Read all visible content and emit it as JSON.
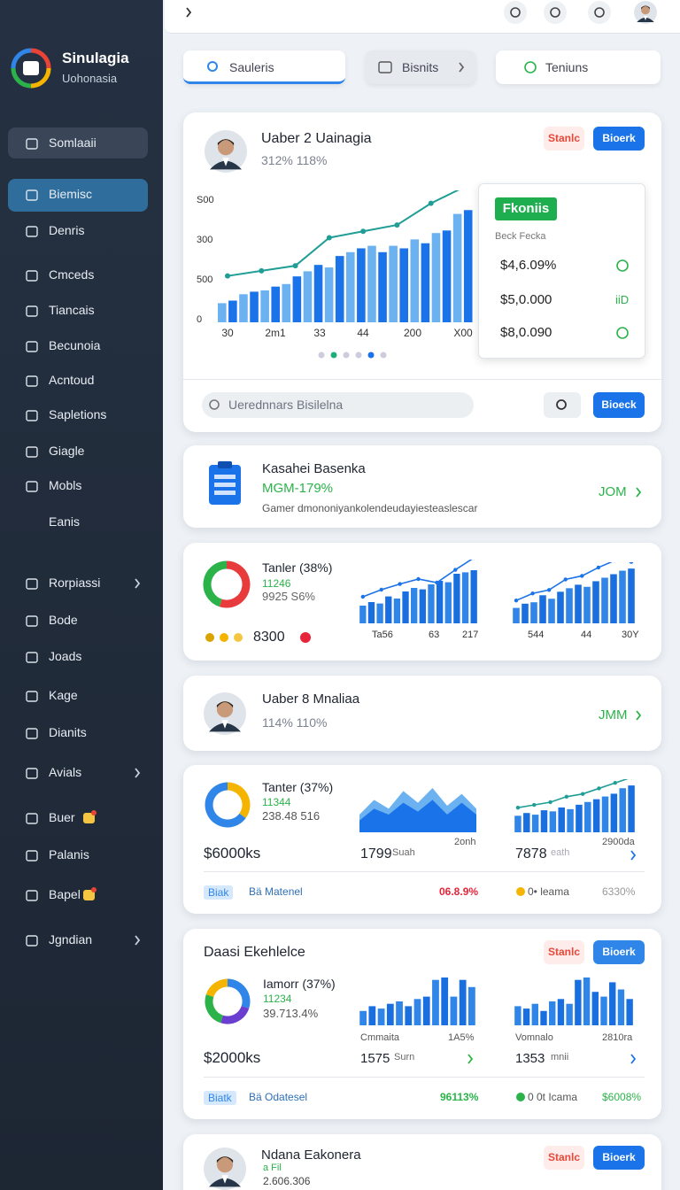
{
  "sidebar": {
    "brand": {
      "title": "Sinulagia",
      "subtitle": "Uohonasia"
    },
    "items": [
      "Somlaaii",
      "Biemisc",
      "Denris",
      "Cmceds",
      "Tiancais",
      "Becunoia",
      "Acntoud",
      "Sapletions",
      "Giagle",
      "Mobls",
      "Eanis",
      "Rorpiassi",
      "Bode",
      "Joads",
      "Kage",
      "Dianits",
      "Avials",
      "Buer",
      "Palanis",
      "Bapel",
      "Jgndian"
    ]
  },
  "tabs": [
    "Sauleris",
    "Bisnits",
    "Teniuns"
  ],
  "card1": {
    "name": "Uaber 2 Uainagia",
    "stats": "312% 118%",
    "button_a": "Stanlc",
    "button_b": "Bioerk",
    "chart": {
      "type": "bar",
      "ylim": [
        0,
        100
      ],
      "y_axis_labels": [
        "S00",
        "300",
        "500",
        "0"
      ],
      "x_labels": [
        "30",
        "2m1",
        "33",
        "44",
        "200",
        "X00"
      ],
      "bar_colors": [
        "#6cb2f0",
        "#1a73e8"
      ],
      "line_color": "#1f9e96",
      "values": [
        15,
        17,
        22,
        24,
        25,
        28,
        30,
        36,
        40,
        45,
        43,
        52,
        55,
        58,
        60,
        55,
        60,
        58,
        65,
        62,
        70,
        72,
        85,
        88
      ],
      "line": [
        28,
        32,
        36,
        58,
        63,
        68,
        85,
        98
      ]
    },
    "popover": {
      "badge": "Fkoniis",
      "caption": "Beck Fecka",
      "rows": [
        "$4,6.09%",
        "$5,0.000",
        "$8,0.090"
      ],
      "row_tag": "iiD"
    },
    "search_placeholder": "Uerednnars Bisilelna",
    "search_button": "Bioeck"
  },
  "card2": {
    "name": "Kasahei Basenka",
    "stat": "MGM-179%",
    "description": "Gamer dmononiyankolendeudayiesteaslescar",
    "link": "JOM"
  },
  "card3": {
    "title": "Tanler (38%)",
    "sub1": "11246",
    "sub2": "9925 S6%",
    "total": "8300",
    "donut": {
      "values": [
        55,
        45
      ],
      "colors": [
        "#e83b3b",
        "#2bb34a"
      ]
    },
    "chart_a": {
      "values": [
        25,
        30,
        28,
        38,
        35,
        45,
        50,
        48,
        55,
        60,
        58,
        70,
        72,
        75
      ],
      "line": [
        30,
        40,
        48,
        55,
        50,
        68,
        85
      ],
      "labels": [
        "Ta56",
        "63",
        "217"
      ]
    },
    "chart_b": {
      "values": [
        22,
        28,
        30,
        40,
        35,
        45,
        50,
        55,
        52,
        60,
        65,
        70,
        75,
        78
      ],
      "line": [
        25,
        35,
        40,
        55,
        60,
        72,
        82,
        80
      ],
      "labels": [
        "544",
        "44",
        "30Y"
      ]
    }
  },
  "card4": {
    "name": "Uaber 8 Mnaliaa",
    "stats": "114% 110%",
    "link": "JMM"
  },
  "card5": {
    "title": "Tanter (37%)",
    "sub1": "11344",
    "sub2": "238.48 516",
    "donut": {
      "values": [
        35,
        65
      ],
      "colors": [
        "#f4b400",
        "#2f86e8"
      ]
    },
    "area": {
      "back": [
        30,
        55,
        40,
        70,
        50,
        75,
        45,
        65,
        40
      ],
      "front": [
        20,
        40,
        30,
        50,
        35,
        55,
        30,
        50,
        30
      ]
    },
    "bars": {
      "values": [
        30,
        35,
        32,
        40,
        38,
        45,
        42,
        50,
        55,
        60,
        65,
        70,
        80,
        85
      ],
      "line": [
        35,
        40,
        45,
        55,
        60,
        70,
        80,
        90
      ]
    },
    "amount": "$6000ks",
    "num_a": "1799",
    "unit_a": "Suah",
    "note_a": "2onh",
    "num_b": "7878",
    "unit_b": "eath",
    "note_b": "2900da",
    "footer": {
      "badge": "Biak",
      "label": "Bä Matenel",
      "stat_a": "06.8.9%",
      "stat_b": "0• leama",
      "stat_c": "6330%"
    }
  },
  "card6": {
    "title": "Daasi Ekehlelce",
    "button_a": "Stanlc",
    "button_b": "Bioerk",
    "sub_title": "Iamorr (37%)",
    "sub1": "11234",
    "sub2": "39.713.4%",
    "donut": {
      "values": [
        30,
        25,
        25,
        20
      ],
      "colors": [
        "#2f86e8",
        "#6a3fd0",
        "#2bb34a",
        "#f4b400"
      ]
    },
    "chart_a": {
      "values": [
        30,
        40,
        35,
        45,
        50,
        40,
        55,
        60,
        95,
        100,
        60,
        95,
        80
      ],
      "label_l": "Cmmaita",
      "label_r": "1A5%"
    },
    "chart_b": {
      "values": [
        40,
        35,
        45,
        30,
        50,
        55,
        45,
        95,
        100,
        70,
        60,
        90,
        75,
        55
      ],
      "label_l": "Vomnalo",
      "label_r": "2810ra"
    },
    "amount": "$2000ks",
    "num_a": "1575",
    "unit_a": "Surn",
    "num_b": "1353",
    "unit_b": "mnii",
    "footer": {
      "badge": "Biatk",
      "label": "Bä Odatesel",
      "stat_a": "96113%",
      "stat_b": "0 0t Icama",
      "stat_c": "$6008%"
    }
  },
  "card7": {
    "name": "Ndana Eakonera",
    "sub1": "a Fil",
    "sub2": "2.606.306",
    "button_a": "Stanlc",
    "button_b": "Bioerk"
  }
}
